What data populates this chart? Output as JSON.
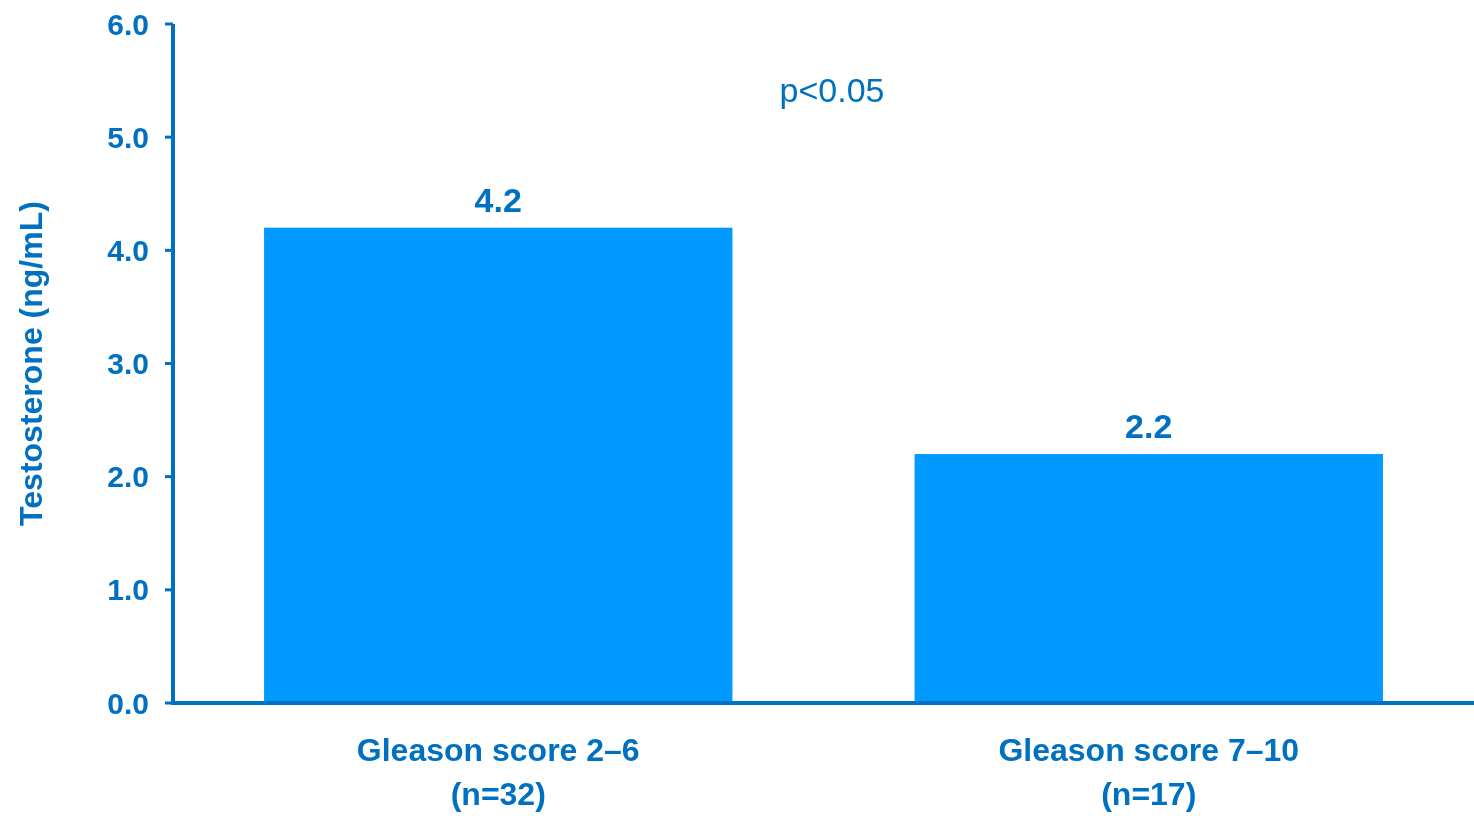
{
  "chart_data": {
    "type": "bar",
    "ylabel": "Testosterone (ng/mL)",
    "categories": [
      "Gleason score 2–6\n(n=32)",
      "Gleason score 7–10\n(n=17)"
    ],
    "values": [
      4.2,
      2.2
    ],
    "color": "#0099ff",
    "ylim": [
      0,
      6
    ],
    "yticks": [
      {
        "value": 0,
        "label": "0.0"
      },
      {
        "value": 1,
        "label": "1.0"
      },
      {
        "value": 2,
        "label": "2.0"
      },
      {
        "value": 3,
        "label": "3.0"
      },
      {
        "value": 4,
        "label": "4.0"
      },
      {
        "value": 5,
        "label": "5.0"
      },
      {
        "value": 6,
        "label": "6.0"
      }
    ],
    "data_labels": true,
    "grid": false,
    "annotations": [
      "p<0.05"
    ]
  }
}
